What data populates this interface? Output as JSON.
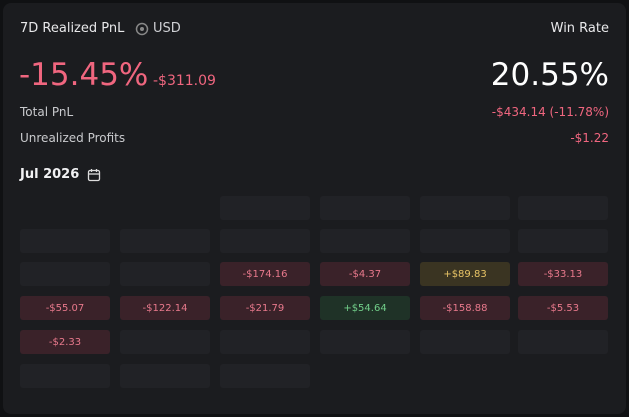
{
  "header": {
    "title": "7D Realized PnL",
    "currency": "USD",
    "win_rate_label": "Win Rate"
  },
  "summary": {
    "pnl_percent": "-15.45%",
    "pnl_amount": "-$311.09",
    "win_rate": "20.55%",
    "rows": [
      {
        "label": "Total PnL",
        "value": "-$434.14 (-11.78%)"
      },
      {
        "label": "Unrealized Profits",
        "value": "-$1.22"
      }
    ]
  },
  "calendar": {
    "month": "Jul 2026",
    "weeks": [
      [
        null,
        null,
        null,
        null
      ],
      [
        null,
        null,
        null,
        null,
        null,
        null
      ],
      [
        null,
        null,
        "-$174.16",
        "-$4.37",
        "+$89.83",
        "-$33.13"
      ],
      [
        "-$55.07",
        "-$122.14",
        "-$21.79",
        "+$54.64",
        "-$158.88",
        "-$5.53"
      ],
      [
        "-$2.33",
        null,
        null,
        null,
        null,
        null
      ],
      [
        null,
        null,
        null
      ]
    ]
  }
}
